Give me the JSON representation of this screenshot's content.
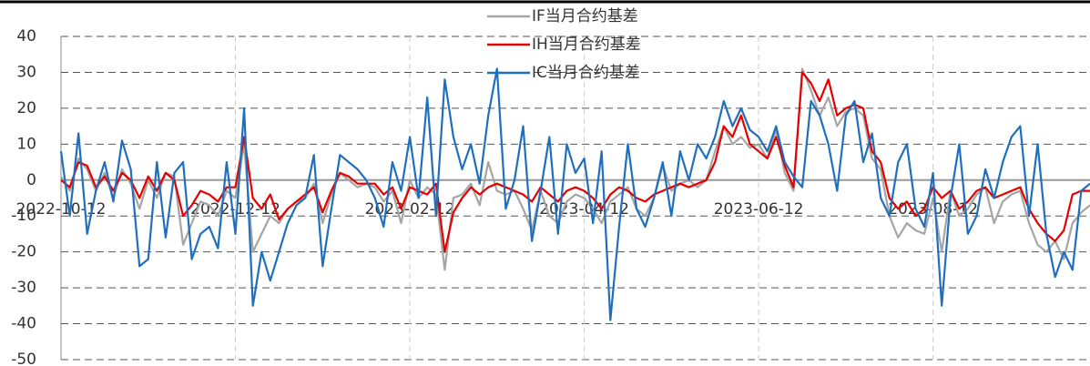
{
  "chart_data": {
    "type": "line",
    "categories": [
      "2022-10-12",
      null,
      null,
      null,
      null,
      null,
      null,
      null,
      null,
      null,
      null,
      null,
      null,
      null,
      null,
      null,
      null,
      null,
      null,
      null,
      "2022-12-12",
      null,
      null,
      null,
      null,
      null,
      null,
      null,
      null,
      null,
      null,
      null,
      null,
      null,
      null,
      null,
      null,
      null,
      null,
      null,
      "2023-02-12",
      null,
      null,
      null,
      null,
      null,
      null,
      null,
      null,
      null,
      null,
      null,
      null,
      null,
      null,
      null,
      null,
      null,
      null,
      null,
      "2023-04-12",
      null,
      null,
      null,
      null,
      null,
      null,
      null,
      null,
      null,
      null,
      null,
      null,
      null,
      null,
      null,
      null,
      null,
      null,
      null,
      "2023-06-12",
      null,
      null,
      null,
      null,
      null,
      null,
      null,
      null,
      null,
      null,
      null,
      null,
      null,
      null,
      null,
      null,
      null,
      null,
      null,
      "2023-08-12",
      null,
      null,
      null,
      null,
      null,
      null,
      null,
      null,
      null,
      null,
      null,
      null,
      null,
      null,
      null,
      null,
      null,
      null
    ],
    "series": [
      {
        "name": "IF当月合约基差",
        "color": "#a5a5a5",
        "values": [
          1,
          -3,
          6,
          3,
          -3,
          2,
          -5,
          3,
          -1,
          -8,
          0,
          -5,
          2,
          1,
          -18,
          -12,
          -6,
          -7,
          -10,
          -3,
          -5,
          10,
          -20,
          -15,
          -10,
          -12,
          -8,
          -6,
          -5,
          -1,
          -12,
          -4,
          2,
          0,
          -2,
          -1,
          -2,
          -6,
          -3,
          -12,
          0,
          -5,
          -2,
          -4,
          -25,
          -5,
          -4,
          -1,
          -7,
          5,
          -3,
          -4,
          -3,
          -8,
          -14,
          -3,
          -10,
          -12,
          -6,
          -4,
          -5,
          -8,
          -12,
          -6,
          -4,
          -2,
          -8,
          -10,
          -5,
          4,
          -3,
          -1,
          0,
          -2,
          0,
          8,
          15,
          10,
          12,
          9,
          10,
          6,
          14,
          2,
          -3,
          31,
          25,
          18,
          23,
          15,
          19,
          20,
          18,
          6,
          3,
          -10,
          -16,
          -12,
          -14,
          -15,
          -5,
          -20,
          -3,
          -10,
          -8,
          -4,
          -2,
          -12,
          -6,
          -4,
          -3,
          -12,
          -18,
          -20,
          -17,
          -22,
          -12,
          -9,
          -7
        ]
      },
      {
        "name": "IH当月合约基差",
        "color": "#e60000",
        "values": [
          0,
          -2,
          5,
          4,
          -2,
          1,
          -3,
          2,
          0,
          -5,
          1,
          -3,
          2,
          0,
          -10,
          -7,
          -3,
          -4,
          -6,
          -2,
          -2,
          12,
          -5,
          -8,
          -4,
          -11,
          -8,
          -6,
          -4,
          -2,
          -9,
          -3,
          2,
          1,
          -1,
          -1,
          -1,
          -4,
          -2,
          -8,
          -2,
          -3,
          -4,
          -1,
          -20,
          -9,
          -5,
          -2,
          -4,
          -2,
          -1,
          -2,
          -3,
          -4,
          -6,
          -2,
          -4,
          -6,
          -3,
          -2,
          -3,
          -5,
          -8,
          -4,
          -2,
          -3,
          -5,
          -6,
          -4,
          -3,
          -2,
          -1,
          -2,
          -1,
          0,
          5,
          15,
          12,
          18,
          10,
          8,
          6,
          12,
          4,
          -2,
          30,
          27,
          22,
          28,
          18,
          20,
          21,
          20,
          8,
          5,
          -5,
          -8,
          -6,
          -10,
          -8,
          -2,
          -5,
          -3,
          -8,
          -6,
          -3,
          -2,
          -5,
          -4,
          -3,
          -2,
          -8,
          -12,
          -15,
          -17,
          -14,
          -4,
          -3,
          -3
        ]
      },
      {
        "name": "IC当月合约基差",
        "color": "#1f6fbf",
        "values": [
          8,
          -10,
          13,
          -15,
          -3,
          5,
          -6,
          11,
          3,
          -24,
          -22,
          5,
          -16,
          2,
          5,
          -22,
          -15,
          -13,
          -19,
          5,
          -15,
          20,
          -35,
          -20,
          -28,
          -20,
          -12,
          -7,
          -5,
          7,
          -24,
          -8,
          7,
          5,
          3,
          0,
          -5,
          -13,
          5,
          -3,
          12,
          -5,
          23,
          -10,
          28,
          12,
          3,
          10,
          -1,
          18,
          31,
          -8,
          0,
          15,
          -17,
          -3,
          12,
          -15,
          10,
          2,
          6,
          -12,
          8,
          -39,
          -13,
          10,
          -8,
          -13,
          -5,
          5,
          -10,
          8,
          0,
          10,
          6,
          12,
          22,
          15,
          20,
          14,
          12,
          8,
          15,
          5,
          1,
          -2,
          22,
          18,
          10,
          -3,
          18,
          22,
          5,
          13,
          -5,
          -10,
          5,
          10,
          -8,
          -13,
          2,
          -35,
          -5,
          10,
          -15,
          -10,
          3,
          -5,
          5,
          12,
          15,
          -10,
          10,
          -15,
          -27,
          -20,
          -25,
          -3,
          -1
        ]
      }
    ],
    "ylim": [
      -50,
      40
    ],
    "yticks": [
      -50,
      -40,
      -30,
      -20,
      -10,
      0,
      10,
      20,
      30,
      40
    ],
    "grid": true
  }
}
